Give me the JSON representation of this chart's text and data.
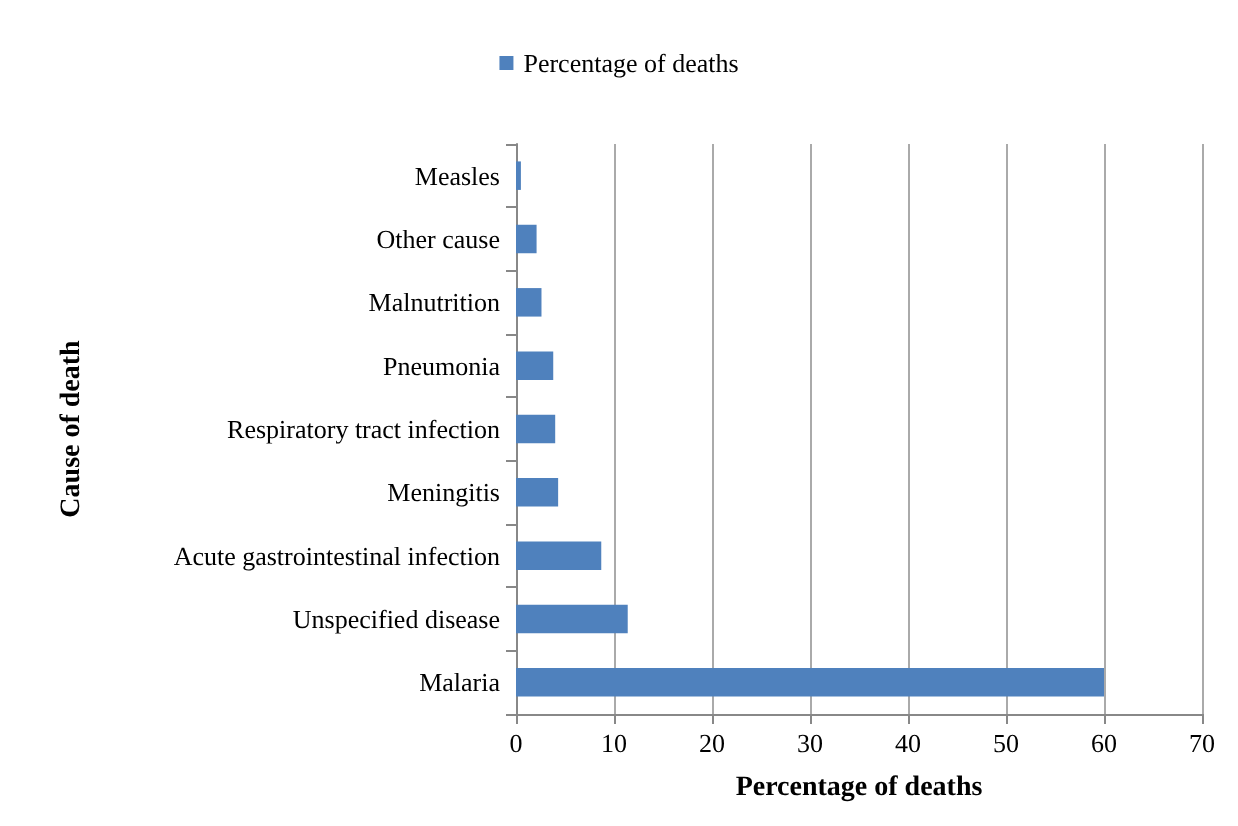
{
  "chart_data": {
    "type": "bar",
    "orientation": "horizontal",
    "xlabel": "Percentage of deaths",
    "ylabel": "Cause of death",
    "categories": [
      "Measles",
      "Other cause",
      "Malnutrition",
      "Pneumonia",
      "Respiratory tract infection",
      "Meningitis",
      "Acute gastrointestinal infection",
      "Unspecified disease",
      "Malaria"
    ],
    "series": [
      {
        "name": "Percentage of deaths",
        "color": "#4f81bd",
        "values": [
          0.5,
          2.1,
          2.6,
          3.8,
          4.0,
          4.3,
          8.7,
          11.4,
          60
        ]
      }
    ],
    "xlim": [
      0,
      70
    ],
    "xticks": [
      0,
      10,
      20,
      30,
      40,
      50,
      60,
      70
    ],
    "grid": "x",
    "legend": "top"
  }
}
